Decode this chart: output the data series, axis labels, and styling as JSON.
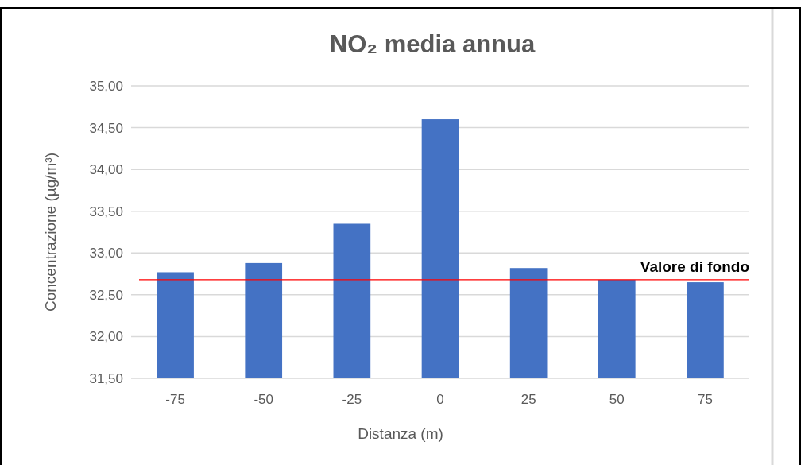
{
  "chart_data": {
    "type": "bar",
    "title": "NO₂ media annua",
    "xlabel": "Distanza (m)",
    "ylabel": "Concentrazione (µg/m³)",
    "categories": [
      "-75",
      "-50",
      "-25",
      "0",
      "25",
      "50",
      "75"
    ],
    "values": [
      32.77,
      32.88,
      33.35,
      34.6,
      32.82,
      32.68,
      32.65
    ],
    "color": "#4472c4",
    "ylim": [
      31.5,
      35
    ],
    "yticks": [
      {
        "value": 31.5,
        "label": "31,50"
      },
      {
        "value": 32,
        "label": "32,00"
      },
      {
        "value": 32.5,
        "label": "32,50"
      },
      {
        "value": 33,
        "label": "33,00"
      },
      {
        "value": 33.5,
        "label": "33,50"
      },
      {
        "value": 34,
        "label": "34,00"
      },
      {
        "value": 34.5,
        "label": "34,50"
      },
      {
        "value": 35,
        "label": "35,00"
      }
    ],
    "grid": "y",
    "ref_lines": [
      {
        "axis": "y",
        "value": 32.68,
        "label": "Valore di fondo",
        "color": "#ff0000"
      }
    ]
  }
}
